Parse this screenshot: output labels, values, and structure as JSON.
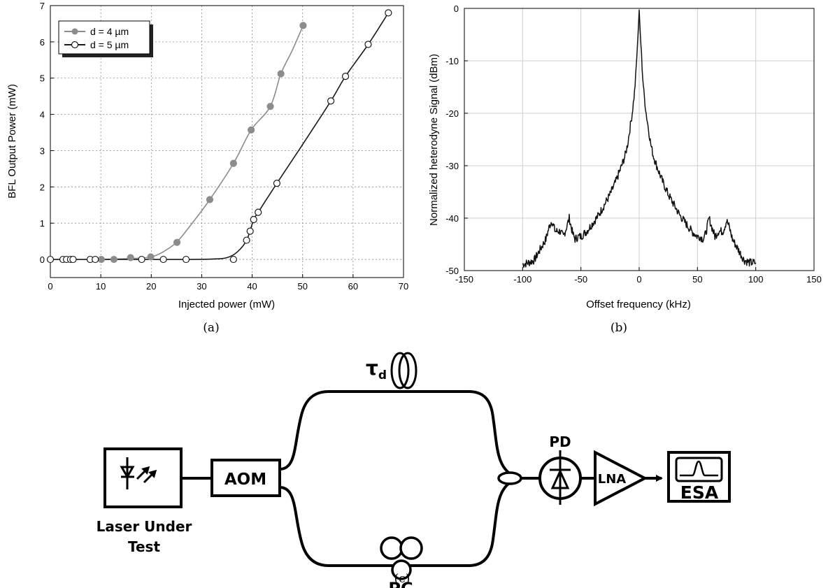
{
  "chart_data": [
    {
      "panel": "(a)",
      "type": "scatter",
      "xlabel": "Injected power (mW)",
      "ylabel": "BFL Output Power (mW)",
      "xlim": [
        0,
        70
      ],
      "ylim": [
        -0.5,
        7
      ],
      "xticks": [
        0,
        10,
        20,
        30,
        40,
        50,
        60,
        70
      ],
      "yticks": [
        0,
        1,
        2,
        3,
        4,
        5,
        6,
        7
      ],
      "grid": true,
      "legend_position": "top-left",
      "series": [
        {
          "name": "d = 4 µm",
          "color": "#8c8c8c",
          "marker": "filled-circle",
          "points": [
            [
              10.1,
              0.0
            ],
            [
              12.6,
              0.0
            ],
            [
              15.9,
              0.05
            ],
            [
              19.9,
              0.07
            ],
            [
              25.1,
              0.47
            ],
            [
              31.6,
              1.65
            ],
            [
              36.3,
              2.65
            ],
            [
              39.8,
              3.57
            ],
            [
              43.6,
              4.22
            ],
            [
              45.7,
              5.12
            ],
            [
              50.1,
              6.45
            ]
          ],
          "curve": [
            [
              10,
              0.0
            ],
            [
              15,
              0.02
            ],
            [
              18,
              0.04
            ],
            [
              20,
              0.07
            ],
            [
              22,
              0.18
            ],
            [
              25,
              0.47
            ],
            [
              28,
              0.98
            ],
            [
              31.6,
              1.65
            ],
            [
              36.3,
              2.65
            ],
            [
              39.8,
              3.57
            ],
            [
              43.6,
              4.22
            ],
            [
              45.7,
              5.12
            ],
            [
              48,
              5.78
            ],
            [
              50.1,
              6.45
            ]
          ]
        },
        {
          "name": "d = 5 µm",
          "color": "#1a1a1a",
          "marker": "open-circle",
          "points": [
            [
              0.0,
              0.0
            ],
            [
              2.5,
              0.0
            ],
            [
              3.2,
              0.0
            ],
            [
              4.0,
              0.0
            ],
            [
              4.5,
              0.0
            ],
            [
              7.9,
              0.0
            ],
            [
              8.9,
              0.0
            ],
            [
              18.1,
              0.0
            ],
            [
              22.4,
              0.0
            ],
            [
              26.9,
              0.0
            ],
            [
              36.3,
              0.0
            ],
            [
              38.9,
              0.53
            ],
            [
              39.6,
              0.78
            ],
            [
              40.3,
              1.1
            ],
            [
              41.2,
              1.3
            ],
            [
              44.9,
              2.1
            ],
            [
              55.6,
              4.37
            ],
            [
              58.5,
              5.05
            ],
            [
              63.0,
              5.93
            ],
            [
              67.0,
              6.8
            ]
          ],
          "curve": [
            [
              0,
              0.0
            ],
            [
              25,
              0.0
            ],
            [
              32,
              0.01
            ],
            [
              35,
              0.05
            ],
            [
              37,
              0.2
            ],
            [
              38.9,
              0.53
            ],
            [
              40.3,
              1.1
            ],
            [
              41.2,
              1.3
            ],
            [
              44.9,
              2.1
            ],
            [
              50,
              3.17
            ],
            [
              55.6,
              4.37
            ],
            [
              58.5,
              5.05
            ],
            [
              63.0,
              5.93
            ],
            [
              67.0,
              6.8
            ]
          ]
        }
      ]
    },
    {
      "panel": "(b)",
      "type": "line",
      "xlabel": "Offset frequency (kHz)",
      "ylabel": "Normalized heterodyne Signal (dBm)",
      "xlim": [
        -150,
        150
      ],
      "ylim": [
        -50,
        0
      ],
      "xticks": [
        -150,
        -100,
        -50,
        0,
        50,
        100,
        150
      ],
      "yticks": [
        0,
        -10,
        -20,
        -30,
        -40,
        -50
      ],
      "grid": true,
      "series": [
        {
          "color": "#111111",
          "x": [
            -100,
            -95,
            -90,
            -85,
            -80,
            -77,
            -75,
            -72,
            -68,
            -65,
            -62,
            -60,
            -57,
            -55,
            -52,
            -50,
            -45,
            -40,
            -35,
            -30,
            -25,
            -20,
            -15,
            -12,
            -10,
            -8,
            -6,
            -4,
            -3,
            -2,
            -1,
            0,
            1,
            2,
            3,
            4,
            6,
            8,
            10,
            12,
            15,
            20,
            25,
            30,
            35,
            40,
            45,
            50,
            52,
            55,
            57,
            60,
            62,
            65,
            68,
            72,
            75,
            77,
            80,
            85,
            90,
            95,
            100
          ],
          "y": [
            -48.8,
            -48.5,
            -48,
            -46,
            -44,
            -41.5,
            -40.5,
            -42.5,
            -42.5,
            -43.5,
            -41.5,
            -40,
            -43,
            -44,
            -43.5,
            -43.5,
            -42.5,
            -41,
            -39.5,
            -37.5,
            -35.5,
            -33,
            -30,
            -28,
            -26,
            -23,
            -20,
            -16,
            -13,
            -9,
            -5,
            -0.3,
            -5,
            -9,
            -13,
            -16,
            -20,
            -23,
            -26,
            -28,
            -30,
            -33,
            -35.5,
            -37.5,
            -39.5,
            -41,
            -42.5,
            -43.5,
            -43.5,
            -44,
            -43,
            -40,
            -41.5,
            -43.5,
            -42.5,
            -42.5,
            -40.5,
            -41.5,
            -44,
            -46,
            -48,
            -48.5,
            -48.5
          ]
        }
      ]
    }
  ],
  "labels": {
    "panel_a": "(a)",
    "panel_b": "(b)",
    "panel_c": "(c)"
  },
  "diagram": {
    "laser_label_line1": "Laser Under",
    "laser_label_line2": "Test",
    "aom_label": "AOM",
    "delay_label": "τ",
    "delay_subscript": "d",
    "pc_label": "PC",
    "pd_label": "PD",
    "lna_label": "LNA",
    "esa_label": "ESA"
  }
}
